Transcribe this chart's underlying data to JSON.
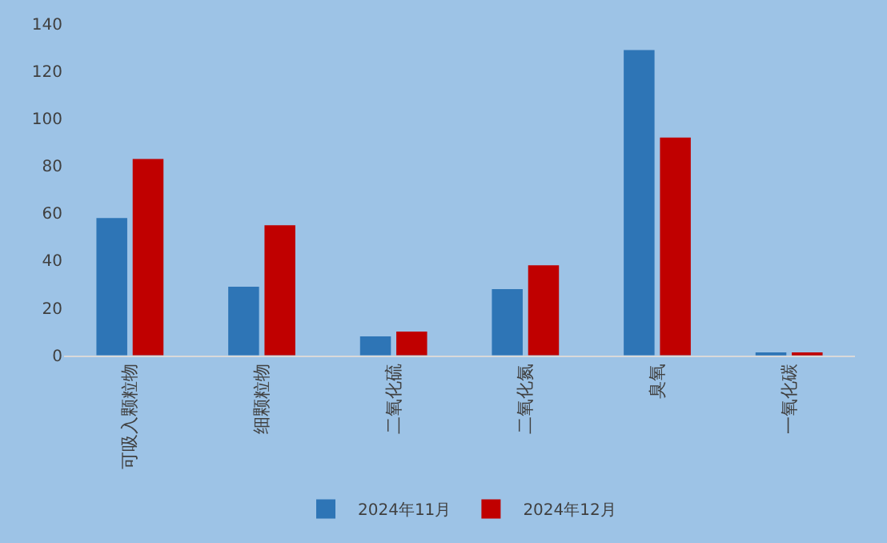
{
  "chart_data": {
    "type": "bar",
    "categories": [
      "可吸入颗粒物",
      "细颗粒物",
      "二氧化硫",
      "二氧化氮",
      "臭氧",
      "一氧化碳"
    ],
    "series": [
      {
        "name": "2024年11月",
        "color": "#2e75b6",
        "values": [
          58,
          29,
          8,
          28,
          129,
          0.7
        ]
      },
      {
        "name": "2024年12月",
        "color": "#c00000",
        "values": [
          83,
          55,
          10,
          38,
          92,
          0.8
        ]
      }
    ],
    "ylim": [
      0,
      140
    ],
    "yticks": [
      0,
      20,
      40,
      60,
      80,
      100,
      120,
      140
    ],
    "grid": false,
    "legend": "bottom"
  }
}
